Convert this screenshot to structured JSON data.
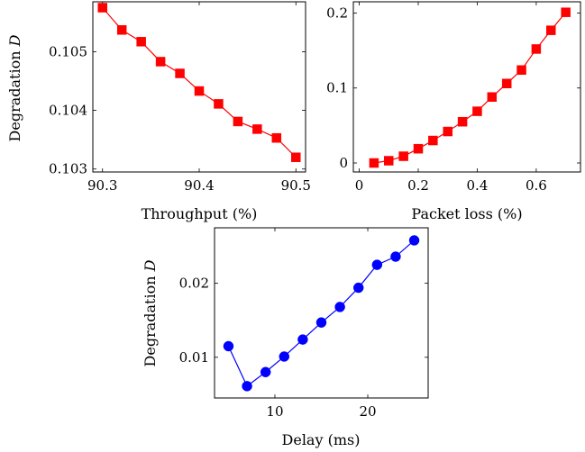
{
  "chart_data": [
    {
      "type": "line",
      "xlabel": "Throughput (%)",
      "ylabel": "Degradation",
      "ylabel_symbol": "D",
      "xlim": [
        90.29,
        90.51
      ],
      "ylim": [
        102.95,
        105.85
      ],
      "xticks": [
        90.3,
        90.4,
        90.5
      ],
      "xtick_labels": [
        "90.3",
        "90.4",
        "90.5"
      ],
      "yticks": [
        103,
        104,
        105
      ],
      "ytick_labels": [
        "0.103",
        "0.104",
        "0.105"
      ],
      "y_scale_note": "×0.001",
      "marker": "square",
      "color": "#ff0000",
      "series": [
        {
          "x": [
            90.3,
            90.32,
            90.34,
            90.36,
            90.38,
            90.4,
            90.42,
            90.44,
            90.46,
            90.48,
            90.5
          ],
          "values": [
            105.75,
            105.37,
            105.17,
            104.83,
            104.63,
            104.33,
            104.11,
            103.81,
            103.68,
            103.53,
            103.2
          ]
        }
      ]
    },
    {
      "type": "line",
      "xlabel": "Packet loss (%)",
      "ylabel": "",
      "xlim": [
        -0.02,
        0.75
      ],
      "ylim": [
        -0.012,
        0.215
      ],
      "xticks": [
        0,
        0.2,
        0.4,
        0.6
      ],
      "xtick_labels": [
        "0",
        "0.2",
        "0.4",
        "0.6"
      ],
      "yticks": [
        0,
        0.1,
        0.2
      ],
      "ytick_labels": [
        "0",
        "0.1",
        "0.2"
      ],
      "marker": "square",
      "color": "#ff0000",
      "series": [
        {
          "x": [
            0.05,
            0.1,
            0.15,
            0.2,
            0.25,
            0.3,
            0.35,
            0.4,
            0.45,
            0.5,
            0.55,
            0.6,
            0.65,
            0.7
          ],
          "values": [
            0.0,
            0.003,
            0.009,
            0.019,
            0.03,
            0.042,
            0.055,
            0.069,
            0.088,
            0.106,
            0.124,
            0.152,
            0.177,
            0.201
          ]
        }
      ]
    },
    {
      "type": "line",
      "xlabel": "Delay (ms)",
      "ylabel": "Degradation",
      "ylabel_symbol": "D",
      "xlim": [
        3.5,
        26.5
      ],
      "ylim": [
        0.0045,
        0.0275
      ],
      "xticks": [
        10,
        20
      ],
      "xtick_labels": [
        "10",
        "20"
      ],
      "yticks": [
        0.01,
        0.02
      ],
      "ytick_labels": [
        "0.01",
        "0.02"
      ],
      "marker": "circle",
      "color": "#0000ff",
      "series": [
        {
          "x": [
            5,
            7,
            9,
            11,
            13,
            15,
            17,
            19,
            21,
            23,
            25
          ],
          "values": [
            0.0115,
            0.0061,
            0.008,
            0.0101,
            0.0124,
            0.0147,
            0.0168,
            0.0194,
            0.0225,
            0.0236,
            0.0258
          ]
        }
      ]
    }
  ]
}
